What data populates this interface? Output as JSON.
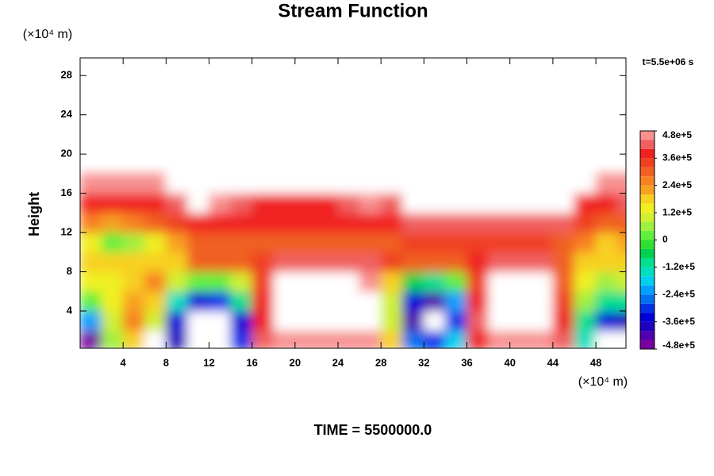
{
  "chart_data": {
    "type": "contourf",
    "title": "Stream Function",
    "y_unit": "(×10⁴ m)",
    "x_unit": "(×10⁴ m)",
    "ylabel": "Height",
    "annotation": "t=5.5e+06 s",
    "footer": "TIME = 5500000.0",
    "xlim": [
      0,
      50.8
    ],
    "ylim": [
      0.2,
      29.8
    ],
    "xticks": [
      4,
      8,
      12,
      16,
      20,
      24,
      28,
      32,
      36,
      40,
      44,
      48
    ],
    "yticks": [
      4,
      8,
      12,
      16,
      20,
      24,
      28
    ],
    "x": [
      1,
      3,
      5,
      7,
      9,
      11,
      13,
      15,
      17,
      19,
      21,
      23,
      25,
      27,
      29,
      31,
      33,
      35,
      37,
      39,
      41,
      43,
      45,
      47,
      49,
      51
    ],
    "y": [
      1,
      3,
      5,
      7,
      9,
      11,
      13,
      15,
      17
    ],
    "z": [
      [
        -450000,
        60000,
        180000,
        -520000,
        -360000,
        -520000,
        -500000,
        -300000,
        420000,
        460000,
        460000,
        460000,
        460000,
        460000,
        200000,
        -240000,
        -300000,
        -160000,
        400000,
        460000,
        460000,
        460000,
        420000,
        -150000,
        -520000,
        -520000
      ],
      [
        -200000,
        100000,
        280000,
        120000,
        -350000,
        -520000,
        -520000,
        -320000,
        400000,
        500000,
        500000,
        500000,
        500000,
        500000,
        100000,
        -420000,
        -520000,
        -300000,
        420000,
        500000,
        500000,
        500000,
        400000,
        -100000,
        -340000,
        -360000
      ],
      [
        40000,
        160000,
        240000,
        180000,
        -150000,
        -320000,
        -300000,
        -100000,
        380000,
        500000,
        500000,
        500000,
        500000,
        500000,
        120000,
        -350000,
        -400000,
        -200000,
        400000,
        500000,
        500000,
        500000,
        360000,
        80000,
        -80000,
        -100000
      ],
      [
        140000,
        160000,
        200000,
        260000,
        100000,
        20000,
        20000,
        100000,
        360000,
        500000,
        500000,
        500000,
        500000,
        460000,
        200000,
        -60000,
        -100000,
        20000,
        340000,
        500000,
        500000,
        500000,
        300000,
        160000,
        80000,
        120000
      ],
      [
        200000,
        200000,
        180000,
        180000,
        180000,
        300000,
        300000,
        300000,
        360000,
        440000,
        440000,
        440000,
        440000,
        440000,
        360000,
        320000,
        320000,
        320000,
        380000,
        440000,
        440000,
        440000,
        320000,
        200000,
        200000,
        200000
      ],
      [
        160000,
        40000,
        80000,
        160000,
        240000,
        300000,
        320000,
        320000,
        320000,
        320000,
        320000,
        320000,
        320000,
        320000,
        320000,
        360000,
        360000,
        360000,
        360000,
        360000,
        360000,
        360000,
        320000,
        260000,
        200000,
        220000
      ],
      [
        280000,
        240000,
        260000,
        300000,
        340000,
        380000,
        380000,
        380000,
        380000,
        380000,
        380000,
        380000,
        380000,
        380000,
        380000,
        420000,
        420000,
        420000,
        420000,
        420000,
        420000,
        420000,
        420000,
        360000,
        320000,
        300000
      ],
      [
        380000,
        380000,
        390000,
        400000,
        420000,
        500000,
        450000,
        420000,
        400000,
        400000,
        400000,
        400000,
        420000,
        460000,
        440000,
        500000,
        500000,
        500000,
        500000,
        500000,
        500000,
        500000,
        500000,
        400000,
        400000,
        420000
      ],
      [
        450000,
        450000,
        460000,
        470000,
        500000,
        500000,
        500000,
        500000,
        500000,
        500000,
        500000,
        500000,
        500000,
        500000,
        500000,
        500000,
        500000,
        500000,
        500000,
        500000,
        500000,
        500000,
        500000,
        500000,
        460000,
        460000
      ]
    ],
    "colorbar": {
      "levels": [
        -480000,
        -440000,
        -400000,
        -360000,
        -320000,
        -280000,
        -240000,
        -200000,
        -160000,
        -120000,
        -80000,
        -40000,
        0,
        40000,
        80000,
        120000,
        160000,
        200000,
        240000,
        280000,
        320000,
        360000,
        400000,
        440000,
        480000
      ],
      "colors": [
        "#7a00a0",
        "#5000b0",
        "#2000c0",
        "#0000d8",
        "#0030e8",
        "#0070f0",
        "#00a0ff",
        "#00d0f0",
        "#00e0c0",
        "#00e090",
        "#00d050",
        "#30e030",
        "#60f040",
        "#a0f040",
        "#d0f030",
        "#f0f020",
        "#f8d020",
        "#f8a020",
        "#f88020",
        "#f06020",
        "#f04020",
        "#f02020",
        "#f06060",
        "#f89090"
      ],
      "ticks": [
        {
          "value": 480000,
          "label": "4.8e+5"
        },
        {
          "value": 360000,
          "label": "3.6e+5"
        },
        {
          "value": 240000,
          "label": "2.4e+5"
        },
        {
          "value": 120000,
          "label": "1.2e+5"
        },
        0,
        {
          "value": -120000,
          "label": "-1.2e+5"
        },
        {
          "value": -240000,
          "label": "-2.4e+5"
        },
        {
          "value": -360000,
          "label": "-3.6e+5"
        },
        {
          "value": -480000,
          "label": "-4.8e+5"
        }
      ]
    }
  }
}
